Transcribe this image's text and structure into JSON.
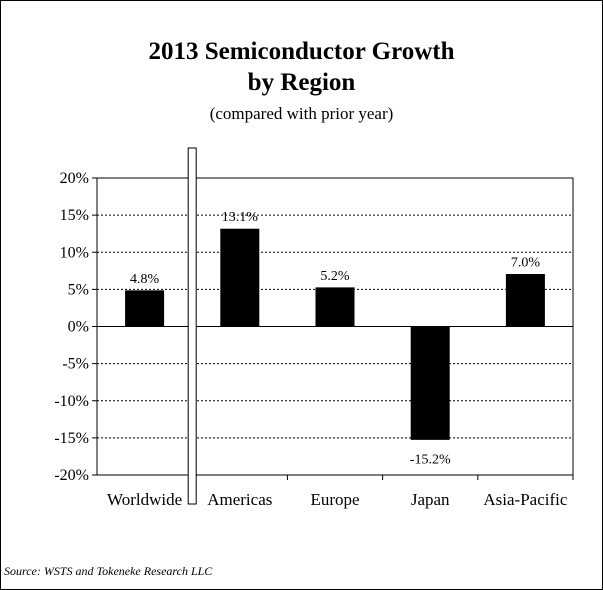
{
  "chart_data": {
    "type": "bar",
    "title_line1": "2013 Semiconductor Growth",
    "title_line2": "by Region",
    "subtitle": "(compared with prior year)",
    "categories": [
      "Worldwide",
      "Americas",
      "Europe",
      "Japan",
      "Asia-Pacific"
    ],
    "values": [
      4.8,
      13.1,
      5.2,
      -15.2,
      7.0
    ],
    "data_labels": [
      "4.8%",
      "13.1%",
      "5.2%",
      "-15.2%",
      "7.0%"
    ],
    "y_ticks": [
      "20%",
      "15%",
      "10%",
      "5%",
      "0%",
      "-5%",
      "-10%",
      "-15%",
      "-20%"
    ],
    "ylim": [
      -20,
      20
    ],
    "grid": true,
    "bar_color": "#000000",
    "source": "Source: WSTS and Tokeneke Research LLC"
  }
}
